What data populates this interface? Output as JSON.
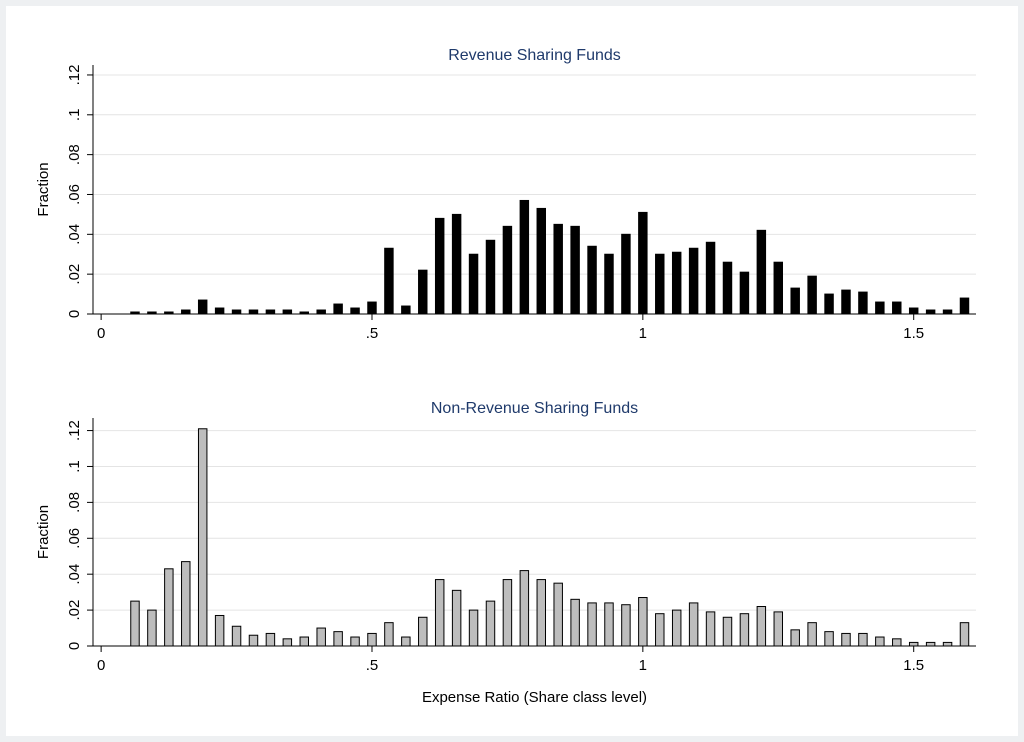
{
  "chart_data": [
    {
      "type": "histogram",
      "title": "Revenue Sharing Funds",
      "ylabel": "Fraction",
      "bins": [
        0.046875,
        0.078125,
        0.109375,
        0.140625,
        0.171875,
        0.203125,
        0.234375,
        0.265625,
        0.296875,
        0.328125,
        0.359375,
        0.390625,
        0.421875,
        0.453125,
        0.484375,
        0.515625,
        0.546875,
        0.578125,
        0.609375,
        0.640625,
        0.671875,
        0.703125,
        0.734375,
        0.765625,
        0.796875,
        0.828125,
        0.859375,
        0.890625,
        0.921875,
        0.953125,
        0.984375,
        1.015625,
        1.046875,
        1.078125,
        1.109375,
        1.140625,
        1.171875,
        1.203125,
        1.234375,
        1.265625,
        1.296875,
        1.328125,
        1.359375,
        1.390625,
        1.421875,
        1.453125,
        1.484375,
        1.515625,
        1.546875,
        1.578125,
        1.609375
      ],
      "values": [
        0.001,
        0.001,
        0.001,
        0.002,
        0.007,
        0.003,
        0.002,
        0.002,
        0.002,
        0.002,
        0.001,
        0.002,
        0.005,
        0.003,
        0.006,
        0.033,
        0.004,
        0.022,
        0.048,
        0.05,
        0.03,
        0.037,
        0.044,
        0.057,
        0.053,
        0.045,
        0.044,
        0.034,
        0.03,
        0.04,
        0.051,
        0.03,
        0.031,
        0.033,
        0.036,
        0.026,
        0.021,
        0.042,
        0.026,
        0.013,
        0.019,
        0.01,
        0.012,
        0.011,
        0.006,
        0.006,
        0.003,
        0.002,
        0.002,
        0.008
      ],
      "color": "#000000",
      "edgecolor": "#000000",
      "xlim": [
        -0.015,
        1.615
      ],
      "xticks": [
        0,
        {
          "value": 0.5,
          "label": ".5"
        },
        1,
        1.5
      ],
      "ylim": [
        0,
        0.125
      ],
      "yticks": [
        0,
        {
          "value": 0.02,
          "label": ".02"
        },
        {
          "value": 0.04,
          "label": ".04"
        },
        {
          "value": 0.06,
          "label": ".06"
        },
        {
          "value": 0.08,
          "label": ".08"
        },
        {
          "value": 0.1,
          "label": ".1"
        },
        {
          "value": 0.12,
          "label": ".12"
        }
      ],
      "grid": true
    },
    {
      "type": "histogram",
      "title": "Non-Revenue Sharing Funds",
      "ylabel": "Fraction",
      "xlabel": "Expense Ratio (Share class level)",
      "bins": [
        0.046875,
        0.078125,
        0.109375,
        0.140625,
        0.171875,
        0.203125,
        0.234375,
        0.265625,
        0.296875,
        0.328125,
        0.359375,
        0.390625,
        0.421875,
        0.453125,
        0.484375,
        0.515625,
        0.546875,
        0.578125,
        0.609375,
        0.640625,
        0.671875,
        0.703125,
        0.734375,
        0.765625,
        0.796875,
        0.828125,
        0.859375,
        0.890625,
        0.921875,
        0.953125,
        0.984375,
        1.015625,
        1.046875,
        1.078125,
        1.109375,
        1.140625,
        1.171875,
        1.203125,
        1.234375,
        1.265625,
        1.296875,
        1.328125,
        1.359375,
        1.390625,
        1.421875,
        1.453125,
        1.484375,
        1.515625,
        1.546875,
        1.578125,
        1.609375
      ],
      "values": [
        0.025,
        0.02,
        0.043,
        0.047,
        0.121,
        0.017,
        0.011,
        0.006,
        0.007,
        0.004,
        0.005,
        0.01,
        0.008,
        0.005,
        0.007,
        0.013,
        0.005,
        0.016,
        0.037,
        0.031,
        0.02,
        0.025,
        0.037,
        0.042,
        0.037,
        0.035,
        0.026,
        0.024,
        0.024,
        0.023,
        0.027,
        0.018,
        0.02,
        0.024,
        0.019,
        0.016,
        0.018,
        0.022,
        0.019,
        0.009,
        0.013,
        0.008,
        0.007,
        0.007,
        0.005,
        0.004,
        0.002,
        0.002,
        0.002,
        0.013
      ],
      "color": "#bdbdbd",
      "edgecolor": "#000000",
      "xlim": [
        -0.015,
        1.615
      ],
      "xticks": [
        0,
        {
          "value": 0.5,
          "label": ".5"
        },
        1,
        1.5
      ],
      "ylim": [
        0,
        0.127
      ],
      "yticks": [
        0,
        {
          "value": 0.02,
          "label": ".02"
        },
        {
          "value": 0.04,
          "label": ".04"
        },
        {
          "value": 0.06,
          "label": ".06"
        },
        {
          "value": 0.08,
          "label": ".08"
        },
        {
          "value": 0.1,
          "label": ".1"
        },
        {
          "value": 0.12,
          "label": ".12"
        }
      ],
      "grid": true
    }
  ]
}
